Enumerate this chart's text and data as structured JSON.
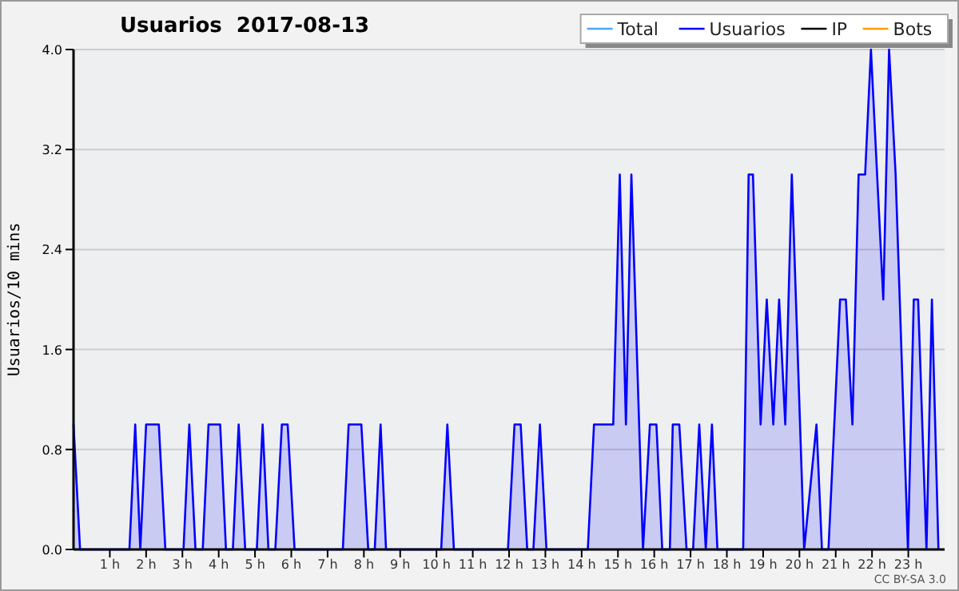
{
  "chart_data": {
    "type": "area",
    "title": "Usuarios  2017-08-13",
    "ylabel": "Usuarios/10 mins",
    "annotations": [
      "CC BY-SA 3.0"
    ],
    "xlim": [
      0,
      24
    ],
    "xticks": [
      {
        "value": 1,
        "label": "1 h"
      },
      {
        "value": 2,
        "label": "2 h"
      },
      {
        "value": 3,
        "label": "3 h"
      },
      {
        "value": 4,
        "label": "4 h"
      },
      {
        "value": 5,
        "label": "5 h"
      },
      {
        "value": 6,
        "label": "6 h"
      },
      {
        "value": 7,
        "label": "7 h"
      },
      {
        "value": 8,
        "label": "8 h"
      },
      {
        "value": 9,
        "label": "9 h"
      },
      {
        "value": 10,
        "label": "10 h"
      },
      {
        "value": 11,
        "label": "11 h"
      },
      {
        "value": 12,
        "label": "12 h"
      },
      {
        "value": 13,
        "label": "13 h"
      },
      {
        "value": 14,
        "label": "14 h"
      },
      {
        "value": 15,
        "label": "15 h"
      },
      {
        "value": 16,
        "label": "16 h"
      },
      {
        "value": 17,
        "label": "17 h"
      },
      {
        "value": 18,
        "label": "18 h"
      },
      {
        "value": 19,
        "label": "19 h"
      },
      {
        "value": 20,
        "label": "20 h"
      },
      {
        "value": 21,
        "label": "21 h"
      },
      {
        "value": 22,
        "label": "22 h"
      },
      {
        "value": 23,
        "label": "23 h"
      }
    ],
    "ylim": [
      0,
      4
    ],
    "yticks": [
      {
        "value": 0,
        "label": "0.0"
      },
      {
        "value": 0.8,
        "label": "0.8"
      },
      {
        "value": 1.6,
        "label": "1.6"
      },
      {
        "value": 2.4,
        "label": "2.4"
      },
      {
        "value": 3.2,
        "label": "3.2"
      },
      {
        "value": 4,
        "label": "4.0"
      }
    ],
    "grid": "y",
    "legend": "top right",
    "series": [
      {
        "name": "Total",
        "type": "line",
        "color": "#4da6ff"
      },
      {
        "name": "Usuarios",
        "color": "#0000ff",
        "x": [
          0,
          0.18,
          1.54,
          1.7,
          1.84,
          2.0,
          2.35,
          2.53,
          3.03,
          3.19,
          3.36,
          3.56,
          3.72,
          4.04,
          4.2,
          4.39,
          4.55,
          4.73,
          5.05,
          5.21,
          5.37,
          5.56,
          5.74,
          5.9,
          6.09,
          7.42,
          7.58,
          7.93,
          8.12,
          8.3,
          8.46,
          8.61,
          10.13,
          10.3,
          10.48,
          11.97,
          12.15,
          12.32,
          12.5,
          12.67,
          12.85,
          13.03,
          14.17,
          14.34,
          14.87,
          15.05,
          15.22,
          15.37,
          15.69,
          15.88,
          16.06,
          16.22,
          16.43,
          16.51,
          16.69,
          16.89,
          17.07,
          17.24,
          17.42,
          17.59,
          17.74,
          18.45,
          18.6,
          18.72,
          18.93,
          19.1,
          19.28,
          19.44,
          19.61,
          19.79,
          20.13,
          20.47,
          20.62,
          20.8,
          21.12,
          21.28,
          21.46,
          21.63,
          21.81,
          21.97,
          22.31,
          22.47,
          22.65,
          22.99,
          23.15,
          23.27,
          23.5,
          23.65,
          23.83
        ],
        "values": [
          1,
          0,
          0,
          1,
          0,
          1,
          1,
          0,
          0,
          1,
          0,
          0,
          1,
          1,
          0,
          0,
          1,
          0,
          0,
          1,
          0,
          0,
          1,
          1,
          0,
          0,
          1,
          1,
          0,
          0,
          1,
          0,
          0,
          1,
          0,
          0,
          1,
          1,
          0,
          0,
          1,
          0,
          0,
          1,
          1,
          3,
          1,
          3,
          0,
          1,
          1,
          0,
          0,
          1,
          1,
          0,
          0,
          1,
          0,
          1,
          0,
          0,
          3,
          3,
          1,
          2,
          1,
          2,
          1,
          3,
          0,
          1,
          0,
          0,
          2,
          2,
          1,
          3,
          3,
          4,
          2,
          4,
          3,
          0,
          2,
          2,
          0,
          2,
          0
        ]
      },
      {
        "name": "IP",
        "type": "line",
        "color": "#000000"
      },
      {
        "name": "Bots",
        "type": "line",
        "color": "#ff9900"
      }
    ]
  }
}
